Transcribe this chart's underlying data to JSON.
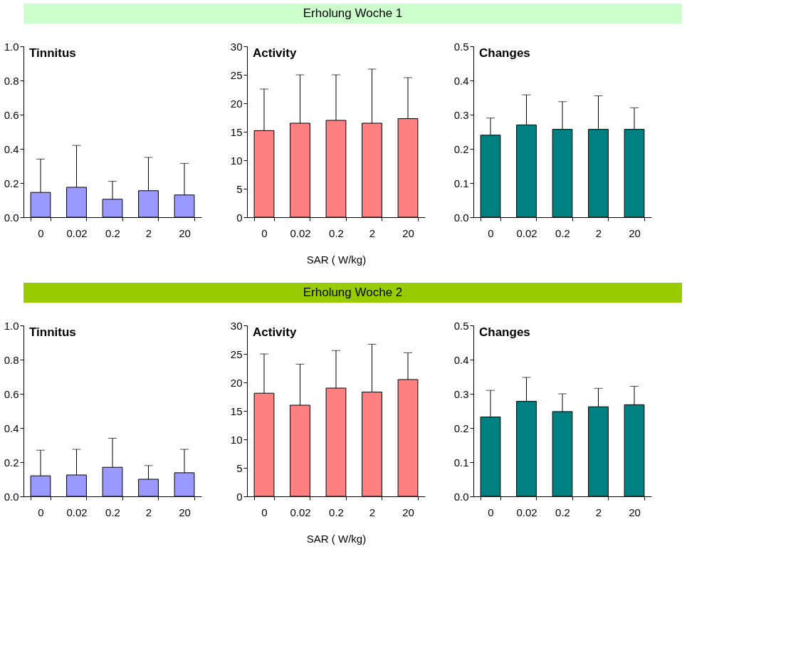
{
  "chart_data": [
    {
      "type": "other",
      "title": "Erholung Woche 1",
      "color": "#ccffcc"
    },
    {
      "type": "bar",
      "title": "Tinnitus",
      "categories": [
        "0",
        "0.02",
        "0.2",
        "2",
        "20"
      ],
      "values": [
        0.145,
        0.175,
        0.105,
        0.155,
        0.13
      ],
      "errors": [
        [
          0.145,
          0.34
        ],
        [
          0.175,
          0.42
        ],
        [
          0.105,
          0.21
        ],
        [
          0.155,
          0.35
        ],
        [
          0.13,
          0.315
        ]
      ],
      "color": "#9999ff",
      "ylim": [
        0,
        1
      ],
      "yticks": [
        {
          "value": 0,
          "label": "0.0"
        },
        {
          "value": 0.2,
          "label": "0.2"
        },
        {
          "value": 0.4,
          "label": "0.4"
        },
        {
          "value": 0.6,
          "label": "0.6"
        },
        {
          "value": 0.8,
          "label": "0.8"
        },
        {
          "value": 1,
          "label": "1.0"
        }
      ],
      "grid": false
    },
    {
      "type": "bar",
      "title": "Activity",
      "xlabel": "SAR ( W/kg)",
      "categories": [
        "0",
        "0.02",
        "0.2",
        "2",
        "20"
      ],
      "values": [
        15.2,
        16.5,
        17.0,
        16.5,
        17.3
      ],
      "errors": [
        [
          15.2,
          22.5
        ],
        [
          16.5,
          25
        ],
        [
          17.0,
          25
        ],
        [
          16.5,
          26
        ],
        [
          17.3,
          24.5
        ]
      ],
      "color": "#ff8080",
      "ylim": [
        0,
        30
      ],
      "yticks": [
        0,
        5,
        10,
        15,
        20,
        25,
        30
      ],
      "grid": false
    },
    {
      "type": "bar",
      "title": "Changes",
      "categories": [
        "0",
        "0.02",
        "0.2",
        "2",
        "20"
      ],
      "values": [
        0.24,
        0.27,
        0.257,
        0.257,
        0.257
      ],
      "errors": [
        [
          0.24,
          0.29
        ],
        [
          0.27,
          0.358
        ],
        [
          0.257,
          0.338
        ],
        [
          0.257,
          0.355
        ],
        [
          0.257,
          0.32
        ]
      ],
      "color": "#008080",
      "ylim": [
        0,
        0.5
      ],
      "yticks": [
        {
          "value": 0,
          "label": "0.0"
        },
        {
          "value": 0.1,
          "label": "0.1"
        },
        {
          "value": 0.2,
          "label": "0.2"
        },
        {
          "value": 0.3,
          "label": "0.3"
        },
        {
          "value": 0.4,
          "label": "0.4"
        },
        {
          "value": 0.5,
          "label": "0.5"
        }
      ],
      "grid": false
    },
    {
      "type": "other",
      "title": "Erholung Woche 2",
      "color": "#99cc00"
    },
    {
      "type": "bar",
      "title": "Tinnitus",
      "categories": [
        "0",
        "0.02",
        "0.2",
        "2",
        "20"
      ],
      "values": [
        0.12,
        0.125,
        0.17,
        0.1,
        0.138
      ],
      "errors": [
        [
          0.12,
          0.27
        ],
        [
          0.125,
          0.275
        ],
        [
          0.17,
          0.34
        ],
        [
          0.1,
          0.18
        ],
        [
          0.138,
          0.275
        ]
      ],
      "color": "#9999ff",
      "ylim": [
        0,
        1
      ],
      "yticks": [
        {
          "value": 0,
          "label": "0.0"
        },
        {
          "value": 0.2,
          "label": "0.2"
        },
        {
          "value": 0.4,
          "label": "0.4"
        },
        {
          "value": 0.6,
          "label": "0.6"
        },
        {
          "value": 0.8,
          "label": "0.8"
        },
        {
          "value": 1,
          "label": "1.0"
        }
      ],
      "grid": false
    },
    {
      "type": "bar",
      "title": "Activity",
      "xlabel": "SAR ( W/kg)",
      "categories": [
        "0",
        "0.02",
        "0.2",
        "2",
        "20"
      ],
      "values": [
        18.1,
        16.0,
        19.0,
        18.3,
        20.5
      ],
      "errors": [
        [
          18.1,
          25
        ],
        [
          16.0,
          23.2
        ],
        [
          19.0,
          25.6
        ],
        [
          18.3,
          26.7
        ],
        [
          20.5,
          25.2
        ]
      ],
      "color": "#ff8080",
      "ylim": [
        0,
        30
      ],
      "yticks": [
        0,
        5,
        10,
        15,
        20,
        25,
        30
      ],
      "grid": false
    },
    {
      "type": "bar",
      "title": "Changes",
      "categories": [
        "0",
        "0.02",
        "0.2",
        "2",
        "20"
      ],
      "values": [
        0.232,
        0.278,
        0.248,
        0.262,
        0.268
      ],
      "errors": [
        [
          0.232,
          0.31
        ],
        [
          0.278,
          0.348
        ],
        [
          0.248,
          0.3
        ],
        [
          0.262,
          0.316
        ],
        [
          0.268,
          0.322
        ]
      ],
      "color": "#008080",
      "ylim": [
        0,
        0.5
      ],
      "yticks": [
        {
          "value": 0,
          "label": "0.0"
        },
        {
          "value": 0.1,
          "label": "0.1"
        },
        {
          "value": 0.2,
          "label": "0.2"
        },
        {
          "value": 0.3,
          "label": "0.3"
        },
        {
          "value": 0.4,
          "label": "0.4"
        },
        {
          "value": 0.5,
          "label": "0.5"
        }
      ],
      "grid": false
    }
  ]
}
